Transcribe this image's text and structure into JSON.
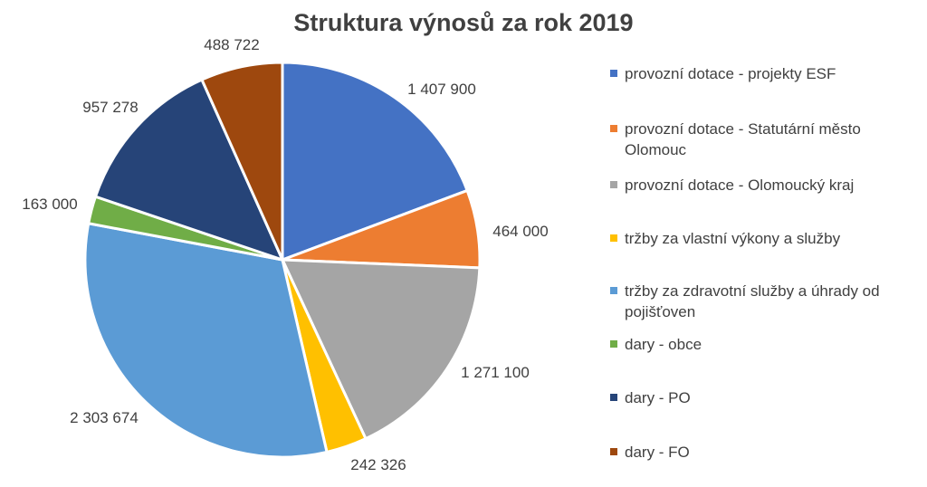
{
  "chart_data": {
    "type": "pie",
    "title": "Struktura výnosů za rok 2019",
    "legend_position": "right",
    "series": [
      {
        "name": "provozní dotace - projekty ESF",
        "value": 1407900,
        "label": "1 407 900",
        "color": "#4472C4"
      },
      {
        "name": "provozní dotace - Statutární město Olomouc",
        "value": 464000,
        "label": "464 000",
        "color": "#ED7D31"
      },
      {
        "name": "provozní dotace - Olomoucký kraj",
        "value": 1271100,
        "label": "1 271 100",
        "color": "#A5A5A5"
      },
      {
        "name": "tržby za vlastní výkony a služby",
        "value": 242326,
        "label": "242 326",
        "color": "#FFC000"
      },
      {
        "name": "tržby za zdravotní služby a úhrady od pojišťoven",
        "value": 2303674,
        "label": "2 303 674",
        "color": "#5B9BD5"
      },
      {
        "name": "dary - obce",
        "value": 163000,
        "label": "163 000",
        "color": "#70AD47"
      },
      {
        "name": "dary - PO",
        "value": 957278,
        "label": "957 278",
        "color": "#264478"
      },
      {
        "name": "dary - FO",
        "value": 488722,
        "label": "488 722",
        "color": "#9E480E"
      }
    ]
  }
}
